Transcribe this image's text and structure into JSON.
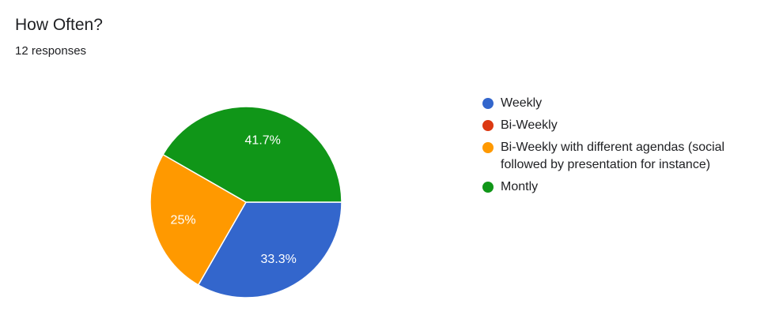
{
  "title": "How Often?",
  "subtitle": "12 responses",
  "chart_data": {
    "type": "pie",
    "categories": [
      "Weekly",
      "Bi-Weekly",
      "Bi-Weekly with different agendas (social followed by presentation for instance)",
      "Montly"
    ],
    "values": [
      33.3,
      0,
      25,
      41.7
    ],
    "data_labels": [
      "33.3%",
      "",
      "25%",
      "41.7%"
    ],
    "colors": [
      "#3366cc",
      "#dc3912",
      "#ff9900",
      "#109618"
    ],
    "legend": "right"
  }
}
